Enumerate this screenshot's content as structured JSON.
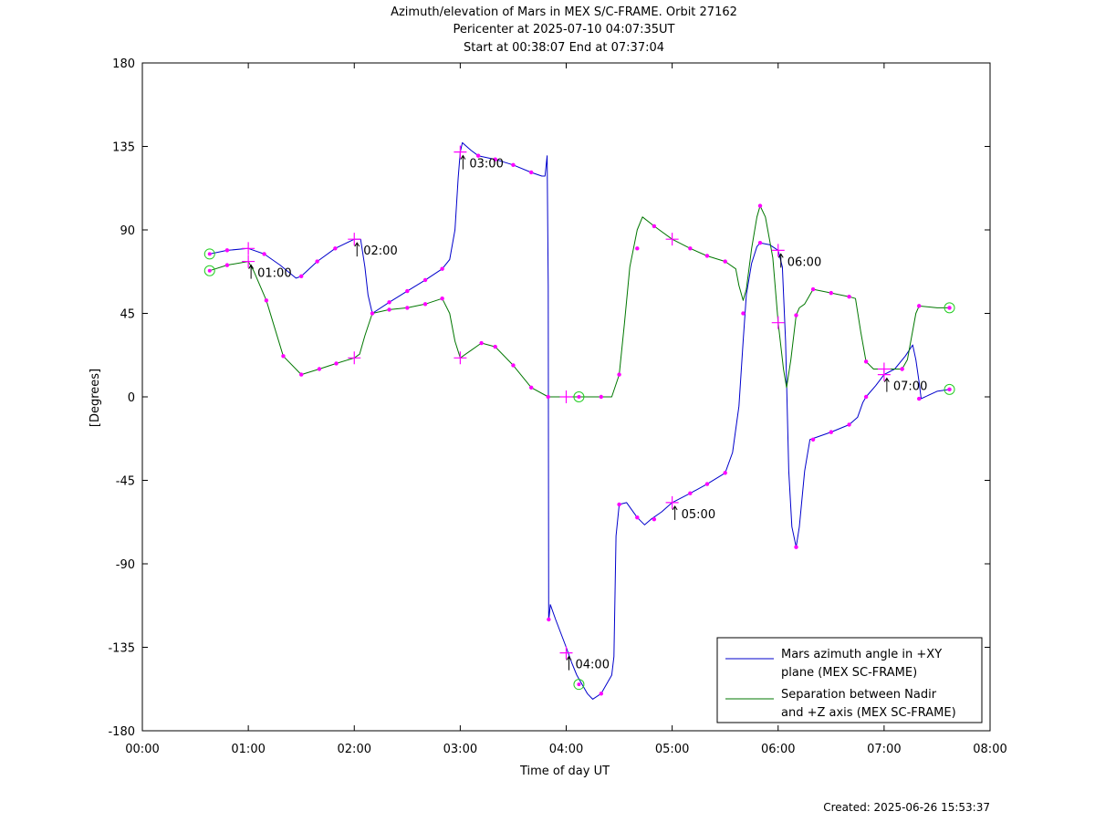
{
  "chart_data": {
    "type": "line",
    "title": "Azimuth/elevation of Mars in MEX S/C-FRAME.  Orbit 27162",
    "subtitle1": "Pericenter at 2025-07-10 04:07:35UT",
    "subtitle2": "Start at 00:38:07 End at 07:37:04",
    "xlabel": "Time of day UT",
    "ylabel": "[Degrees]",
    "xlim": [
      0,
      8
    ],
    "ylim": [
      -180,
      180
    ],
    "x_ticks": [
      0,
      1,
      2,
      3,
      4,
      5,
      6,
      7,
      8
    ],
    "x_tick_labels": [
      "00:00",
      "01:00",
      "02:00",
      "03:00",
      "04:00",
      "05:00",
      "06:00",
      "07:00",
      "08:00"
    ],
    "y_ticks": [
      180,
      135,
      90,
      45,
      0,
      -45,
      -90,
      -135,
      -180
    ],
    "y_tick_labels": [
      "180",
      "135",
      "90",
      "45",
      "0",
      "-45",
      "-90",
      "-135",
      "-180"
    ],
    "grid": false,
    "legend_position": "bottom-right",
    "series": [
      {
        "name": "Mars azimuth angle in +XY plane (MEX SC-FRAME)",
        "legend_lines": [
          "Mars azimuth angle in +XY",
          "plane (MEX SC-FRAME)"
        ],
        "color": "#0000cc",
        "points": [
          [
            0.635,
            77
          ],
          [
            0.8,
            79
          ],
          [
            1.0,
            80
          ],
          [
            1.15,
            77
          ],
          [
            1.3,
            71
          ],
          [
            1.45,
            64
          ],
          [
            1.5,
            65
          ],
          [
            1.65,
            73
          ],
          [
            1.82,
            80
          ],
          [
            2.0,
            85
          ],
          [
            2.06,
            85
          ],
          [
            2.1,
            70
          ],
          [
            2.13,
            55
          ],
          [
            2.17,
            45
          ],
          [
            2.33,
            51
          ],
          [
            2.5,
            57
          ],
          [
            2.67,
            63
          ],
          [
            2.83,
            69
          ],
          [
            2.9,
            74
          ],
          [
            2.95,
            90
          ],
          [
            2.98,
            118
          ],
          [
            3.0,
            132
          ],
          [
            3.02,
            137
          ],
          [
            3.1,
            133
          ],
          [
            3.17,
            130
          ],
          [
            3.33,
            128
          ],
          [
            3.5,
            125
          ],
          [
            3.67,
            121
          ],
          [
            3.77,
            119
          ],
          [
            3.8,
            119
          ],
          [
            3.82,
            130
          ],
          [
            3.83,
            60
          ],
          [
            3.835,
            -120
          ],
          [
            3.84,
            -118
          ],
          [
            3.85,
            -112
          ],
          [
            3.9,
            -120
          ],
          [
            4.0,
            -135
          ],
          [
            4.05,
            -143
          ],
          [
            4.1,
            -150
          ],
          [
            4.2,
            -160
          ],
          [
            4.25,
            -163
          ],
          [
            4.33,
            -160
          ],
          [
            4.43,
            -150
          ],
          [
            4.45,
            -140
          ],
          [
            4.47,
            -75
          ],
          [
            4.5,
            -58
          ],
          [
            4.57,
            -57
          ],
          [
            4.67,
            -65
          ],
          [
            4.74,
            -69
          ],
          [
            4.8,
            -66
          ],
          [
            4.9,
            -62
          ],
          [
            5.0,
            -57
          ],
          [
            5.17,
            -52
          ],
          [
            5.33,
            -47
          ],
          [
            5.5,
            -41
          ],
          [
            5.57,
            -30
          ],
          [
            5.63,
            -5
          ],
          [
            5.67,
            30
          ],
          [
            5.7,
            55
          ],
          [
            5.75,
            72
          ],
          [
            5.8,
            81
          ],
          [
            5.83,
            83
          ],
          [
            5.92,
            82
          ],
          [
            6.0,
            79
          ],
          [
            6.04,
            70
          ],
          [
            6.07,
            30
          ],
          [
            6.1,
            -40
          ],
          [
            6.13,
            -70
          ],
          [
            6.17,
            -81
          ],
          [
            6.2,
            -70
          ],
          [
            6.25,
            -40
          ],
          [
            6.3,
            -23
          ],
          [
            6.5,
            -19
          ],
          [
            6.67,
            -15
          ],
          [
            6.75,
            -11
          ],
          [
            6.8,
            -3
          ],
          [
            6.83,
            0
          ],
          [
            6.92,
            6
          ],
          [
            7.0,
            12
          ],
          [
            7.1,
            15
          ],
          [
            7.2,
            22
          ],
          [
            7.27,
            28
          ],
          [
            7.3,
            20
          ],
          [
            7.33,
            8
          ],
          [
            7.35,
            -1
          ],
          [
            7.5,
            3
          ],
          [
            7.617,
            4
          ]
        ]
      },
      {
        "name": "Separation between Nadir and +Z axis (MEX SC-FRAME)",
        "legend_lines": [
          "Separation between Nadir",
          "and +Z axis (MEX SC-FRAME)"
        ],
        "color": "#007700",
        "points": [
          [
            0.635,
            68
          ],
          [
            0.8,
            71
          ],
          [
            1.0,
            73
          ],
          [
            1.05,
            68
          ],
          [
            1.17,
            52
          ],
          [
            1.33,
            22
          ],
          [
            1.5,
            12
          ],
          [
            1.67,
            15
          ],
          [
            1.83,
            18
          ],
          [
            2.0,
            21
          ],
          [
            2.05,
            23
          ],
          [
            2.1,
            33
          ],
          [
            2.17,
            45
          ],
          [
            2.33,
            47
          ],
          [
            2.5,
            48
          ],
          [
            2.67,
            50
          ],
          [
            2.83,
            53
          ],
          [
            2.9,
            45
          ],
          [
            2.95,
            30
          ],
          [
            3.0,
            21
          ],
          [
            3.1,
            25
          ],
          [
            3.2,
            29
          ],
          [
            3.33,
            27
          ],
          [
            3.5,
            17
          ],
          [
            3.67,
            5
          ],
          [
            3.83,
            0
          ],
          [
            4.0,
            0
          ],
          [
            4.12,
            0
          ],
          [
            4.33,
            0
          ],
          [
            4.43,
            0
          ],
          [
            4.5,
            12
          ],
          [
            4.55,
            40
          ],
          [
            4.6,
            70
          ],
          [
            4.67,
            90
          ],
          [
            4.72,
            97
          ],
          [
            4.83,
            92
          ],
          [
            5.0,
            85
          ],
          [
            5.17,
            80
          ],
          [
            5.33,
            76
          ],
          [
            5.5,
            73
          ],
          [
            5.6,
            69
          ],
          [
            5.63,
            60
          ],
          [
            5.67,
            52
          ],
          [
            5.7,
            58
          ],
          [
            5.75,
            80
          ],
          [
            5.8,
            97
          ],
          [
            5.83,
            103
          ],
          [
            5.88,
            97
          ],
          [
            5.95,
            75
          ],
          [
            6.0,
            40
          ],
          [
            6.05,
            15
          ],
          [
            6.08,
            5
          ],
          [
            6.12,
            20
          ],
          [
            6.17,
            44
          ],
          [
            6.2,
            48
          ],
          [
            6.25,
            50
          ],
          [
            6.33,
            58
          ],
          [
            6.5,
            56
          ],
          [
            6.67,
            54
          ],
          [
            6.73,
            53
          ],
          [
            6.78,
            35
          ],
          [
            6.83,
            19
          ],
          [
            6.9,
            15
          ],
          [
            7.0,
            15
          ],
          [
            7.17,
            15
          ],
          [
            7.22,
            20
          ],
          [
            7.3,
            45
          ],
          [
            7.33,
            49
          ],
          [
            7.5,
            48
          ],
          [
            7.617,
            48
          ]
        ]
      }
    ],
    "markers": {
      "color": "#ff00ff",
      "dots": [
        [
          0.8,
          79
        ],
        [
          1.15,
          77
        ],
        [
          1.5,
          65
        ],
        [
          1.65,
          73
        ],
        [
          1.82,
          80
        ],
        [
          2.17,
          45
        ],
        [
          2.33,
          51
        ],
        [
          2.5,
          57
        ],
        [
          2.67,
          63
        ],
        [
          2.83,
          69
        ],
        [
          3.17,
          130
        ],
        [
          3.33,
          128
        ],
        [
          3.5,
          125
        ],
        [
          3.67,
          121
        ],
        [
          3.835,
          -120
        ],
        [
          4.33,
          -160
        ],
        [
          4.5,
          -58
        ],
        [
          4.67,
          -65
        ],
        [
          4.83,
          -66
        ],
        [
          5.17,
          -52
        ],
        [
          5.33,
          -47
        ],
        [
          5.5,
          -41
        ],
        [
          5.67,
          45
        ],
        [
          5.83,
          83
        ],
        [
          6.17,
          -81
        ],
        [
          6.33,
          -23
        ],
        [
          6.5,
          -19
        ],
        [
          6.67,
          -15
        ],
        [
          6.83,
          0
        ],
        [
          7.17,
          15
        ],
        [
          7.33,
          -1
        ],
        [
          7.617,
          4
        ],
        [
          0.8,
          71
        ],
        [
          1.17,
          52
        ],
        [
          1.33,
          22
        ],
        [
          1.5,
          12
        ],
        [
          1.67,
          15
        ],
        [
          1.83,
          18
        ],
        [
          2.33,
          47
        ],
        [
          2.5,
          48
        ],
        [
          2.67,
          50
        ],
        [
          2.83,
          53
        ],
        [
          3.2,
          29
        ],
        [
          3.33,
          27
        ],
        [
          3.5,
          17
        ],
        [
          3.67,
          5
        ],
        [
          3.83,
          0
        ],
        [
          4.33,
          0
        ],
        [
          4.5,
          12
        ],
        [
          4.67,
          80
        ],
        [
          4.83,
          92
        ],
        [
          5.17,
          80
        ],
        [
          5.33,
          76
        ],
        [
          5.5,
          73
        ],
        [
          5.83,
          103
        ],
        [
          6.17,
          44
        ],
        [
          6.33,
          58
        ],
        [
          6.5,
          56
        ],
        [
          6.67,
          54
        ],
        [
          6.83,
          19
        ],
        [
          7.17,
          15
        ],
        [
          7.33,
          49
        ],
        [
          7.617,
          48
        ]
      ],
      "plus": [
        [
          1.0,
          80
        ],
        [
          1.0,
          73
        ],
        [
          2.0,
          85
        ],
        [
          2.0,
          21
        ],
        [
          3.0,
          132
        ],
        [
          3.0,
          21
        ],
        [
          4.0,
          -138
        ],
        [
          4.0,
          0
        ],
        [
          5.0,
          85
        ],
        [
          5.0,
          -57
        ],
        [
          6.0,
          79
        ],
        [
          6.0,
          40
        ],
        [
          7.0,
          12
        ],
        [
          7.0,
          15
        ]
      ],
      "circles_green": [
        [
          0.635,
          77
        ],
        [
          0.635,
          68
        ],
        [
          4.12,
          0
        ],
        [
          4.12,
          -155
        ],
        [
          7.617,
          48
        ],
        [
          7.617,
          4
        ]
      ]
    },
    "annotations": [
      {
        "x": 1.0,
        "y": 73,
        "label": "01:00"
      },
      {
        "x": 2.0,
        "y": 85,
        "label": "02:00"
      },
      {
        "x": 3.0,
        "y": 132,
        "label": "03:00"
      },
      {
        "x": 4.0,
        "y": -138,
        "label": "04:00"
      },
      {
        "x": 5.0,
        "y": -57,
        "label": "05:00"
      },
      {
        "x": 6.0,
        "y": 79,
        "label": "06:00"
      },
      {
        "x": 7.0,
        "y": 12,
        "label": "07:00"
      }
    ]
  },
  "footer": {
    "created": "Created: 2025-06-26 15:53:37"
  }
}
